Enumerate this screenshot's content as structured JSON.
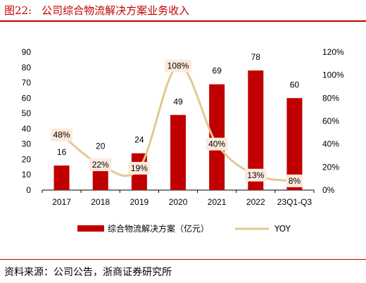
{
  "figure": {
    "number": "图22:",
    "title": "公司综合物流解决方案业务收入",
    "source": "资料来源：公司公告，浙商证券研究所"
  },
  "colors": {
    "bar": "#c00000",
    "line": "#e3c98f",
    "label_box": "#fde9dc",
    "accent": "#c00000"
  },
  "chart_data": {
    "type": "bar",
    "categories": [
      "2017",
      "2018",
      "2019",
      "2020",
      "2021",
      "2022",
      "23Q1-Q3"
    ],
    "series": [
      {
        "name": "综合物流解决方案（亿元）",
        "type": "bar",
        "axis": "left",
        "values": [
          16,
          20,
          24,
          49,
          69,
          78,
          60
        ]
      },
      {
        "name": "YOY",
        "type": "line",
        "axis": "right",
        "values": [
          48,
          22,
          19,
          108,
          40,
          13,
          8
        ],
        "labels": [
          "48%",
          "22%",
          "19%",
          "108%",
          "40%",
          "13%",
          "8%"
        ]
      }
    ],
    "y_left": {
      "min": 0,
      "max": 90,
      "step": 10,
      "ticks": [
        "0",
        "10",
        "20",
        "30",
        "40",
        "50",
        "60",
        "70",
        "80",
        "90"
      ]
    },
    "y_right": {
      "min": 0,
      "max": 120,
      "step": 20,
      "ticks": [
        "0%",
        "20%",
        "40%",
        "60%",
        "80%",
        "100%",
        "120%"
      ]
    },
    "grid": false,
    "legend_position": "bottom"
  }
}
